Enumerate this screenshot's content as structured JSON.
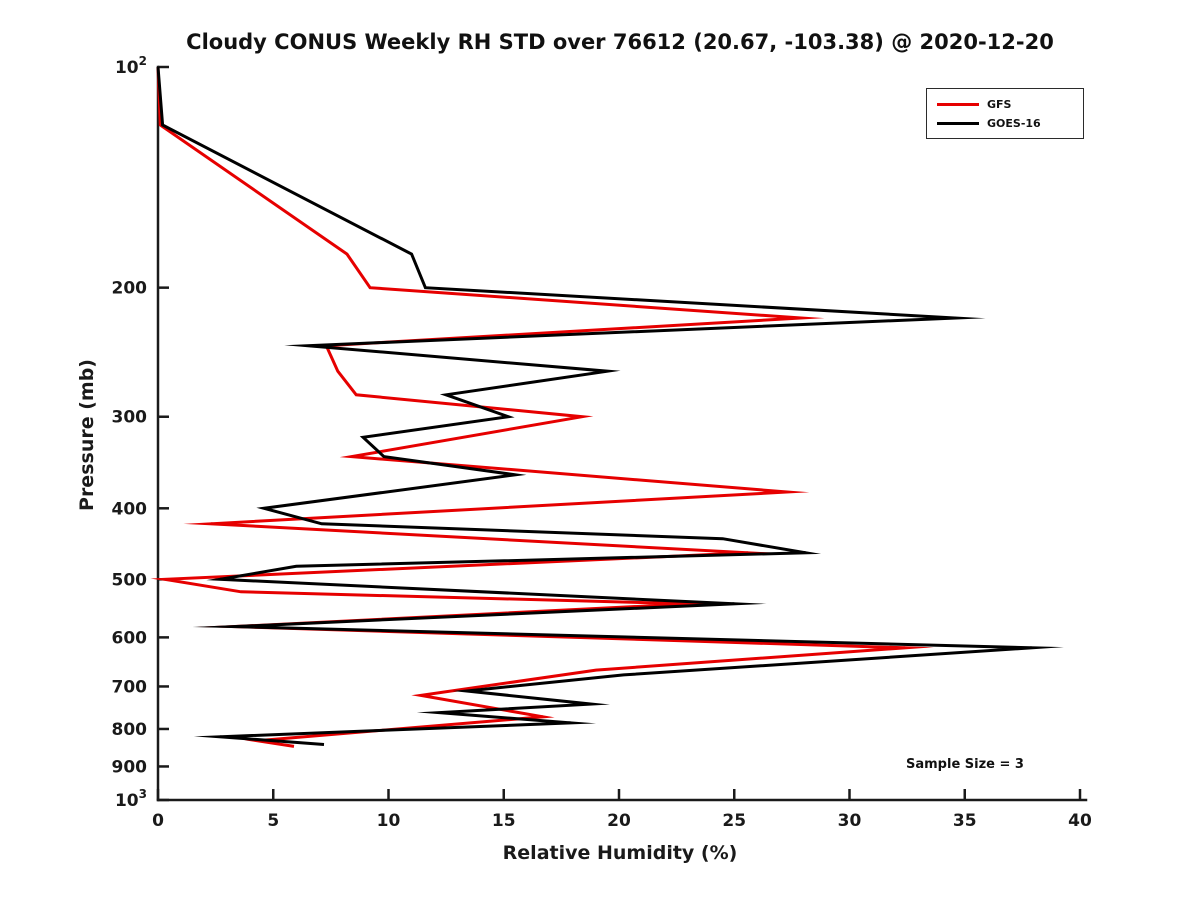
{
  "figure": {
    "background": "#ffffff"
  },
  "chart_data": {
    "type": "line",
    "title": "Cloudy CONUS Weekly RH STD over 76612 (20.67, -103.38) @ 2020-12-20",
    "xlabel": "Relative Humidity (%)",
    "ylabel": "Pressure (mb)",
    "annotation": "Sample Size = 3",
    "axis_color": "#1a1a1a",
    "x_axis": {
      "scale": "linear",
      "min": 0,
      "max": 40,
      "ticks": [
        0,
        5,
        10,
        15,
        20,
        25,
        30,
        35,
        40
      ]
    },
    "y_axis": {
      "scale": "log",
      "inverted": true,
      "min": 100,
      "max": 1000,
      "ticks": [
        {
          "value": 100,
          "label": "10",
          "exp": "2"
        },
        {
          "value": 200,
          "label": "200"
        },
        {
          "value": 300,
          "label": "300"
        },
        {
          "value": 400,
          "label": "400"
        },
        {
          "value": 500,
          "label": "500"
        },
        {
          "value": 600,
          "label": "600"
        },
        {
          "value": 700,
          "label": "700"
        },
        {
          "value": 800,
          "label": "800"
        },
        {
          "value": 900,
          "label": "900"
        },
        {
          "value": 1000,
          "label": "10",
          "exp": "3"
        }
      ]
    },
    "legend": {
      "position": "top-right",
      "entries": [
        {
          "name": "GFS",
          "color": "#e60000"
        },
        {
          "name": "GOES-16",
          "color": "#000000"
        }
      ]
    },
    "series": [
      {
        "name": "GFS",
        "color": "#e60000",
        "points_format": "[pressure_mb, rh_percent]",
        "points": [
          [
            100,
            0.0
          ],
          [
            120,
            0.1
          ],
          [
            180,
            8.2
          ],
          [
            200,
            9.2
          ],
          [
            220,
            27.9
          ],
          [
            240,
            7.3
          ],
          [
            260,
            7.8
          ],
          [
            280,
            8.6
          ],
          [
            300,
            18.4
          ],
          [
            340,
            8.4
          ],
          [
            380,
            27.3
          ],
          [
            420,
            2.3
          ],
          [
            460,
            25.6
          ],
          [
            500,
            0.3
          ],
          [
            520,
            3.6
          ],
          [
            540,
            23.1
          ],
          [
            580,
            3.3
          ],
          [
            620,
            32.4
          ],
          [
            665,
            19.0
          ],
          [
            720,
            11.4
          ],
          [
            770,
            16.7
          ],
          [
            830,
            4.3
          ],
          [
            845,
            5.9
          ]
        ]
      },
      {
        "name": "GOES-16",
        "color": "#000000",
        "points_format": "[pressure_mb, rh_percent]",
        "points": [
          [
            100,
            0.0
          ],
          [
            120,
            0.2
          ],
          [
            180,
            11.0
          ],
          [
            200,
            11.6
          ],
          [
            220,
            34.6
          ],
          [
            240,
            6.5
          ],
          [
            260,
            19.5
          ],
          [
            280,
            12.5
          ],
          [
            300,
            15.2
          ],
          [
            320,
            8.9
          ],
          [
            340,
            9.8
          ],
          [
            360,
            15.5
          ],
          [
            400,
            4.6
          ],
          [
            420,
            7.1
          ],
          [
            440,
            24.5
          ],
          [
            460,
            28.1
          ],
          [
            480,
            6.0
          ],
          [
            500,
            2.7
          ],
          [
            540,
            25.0
          ],
          [
            580,
            3.3
          ],
          [
            620,
            37.9
          ],
          [
            675,
            20.2
          ],
          [
            710,
            13.4
          ],
          [
            740,
            18.8
          ],
          [
            760,
            12.2
          ],
          [
            785,
            17.9
          ],
          [
            820,
            2.7
          ],
          [
            840,
            7.2
          ]
        ]
      }
    ]
  }
}
